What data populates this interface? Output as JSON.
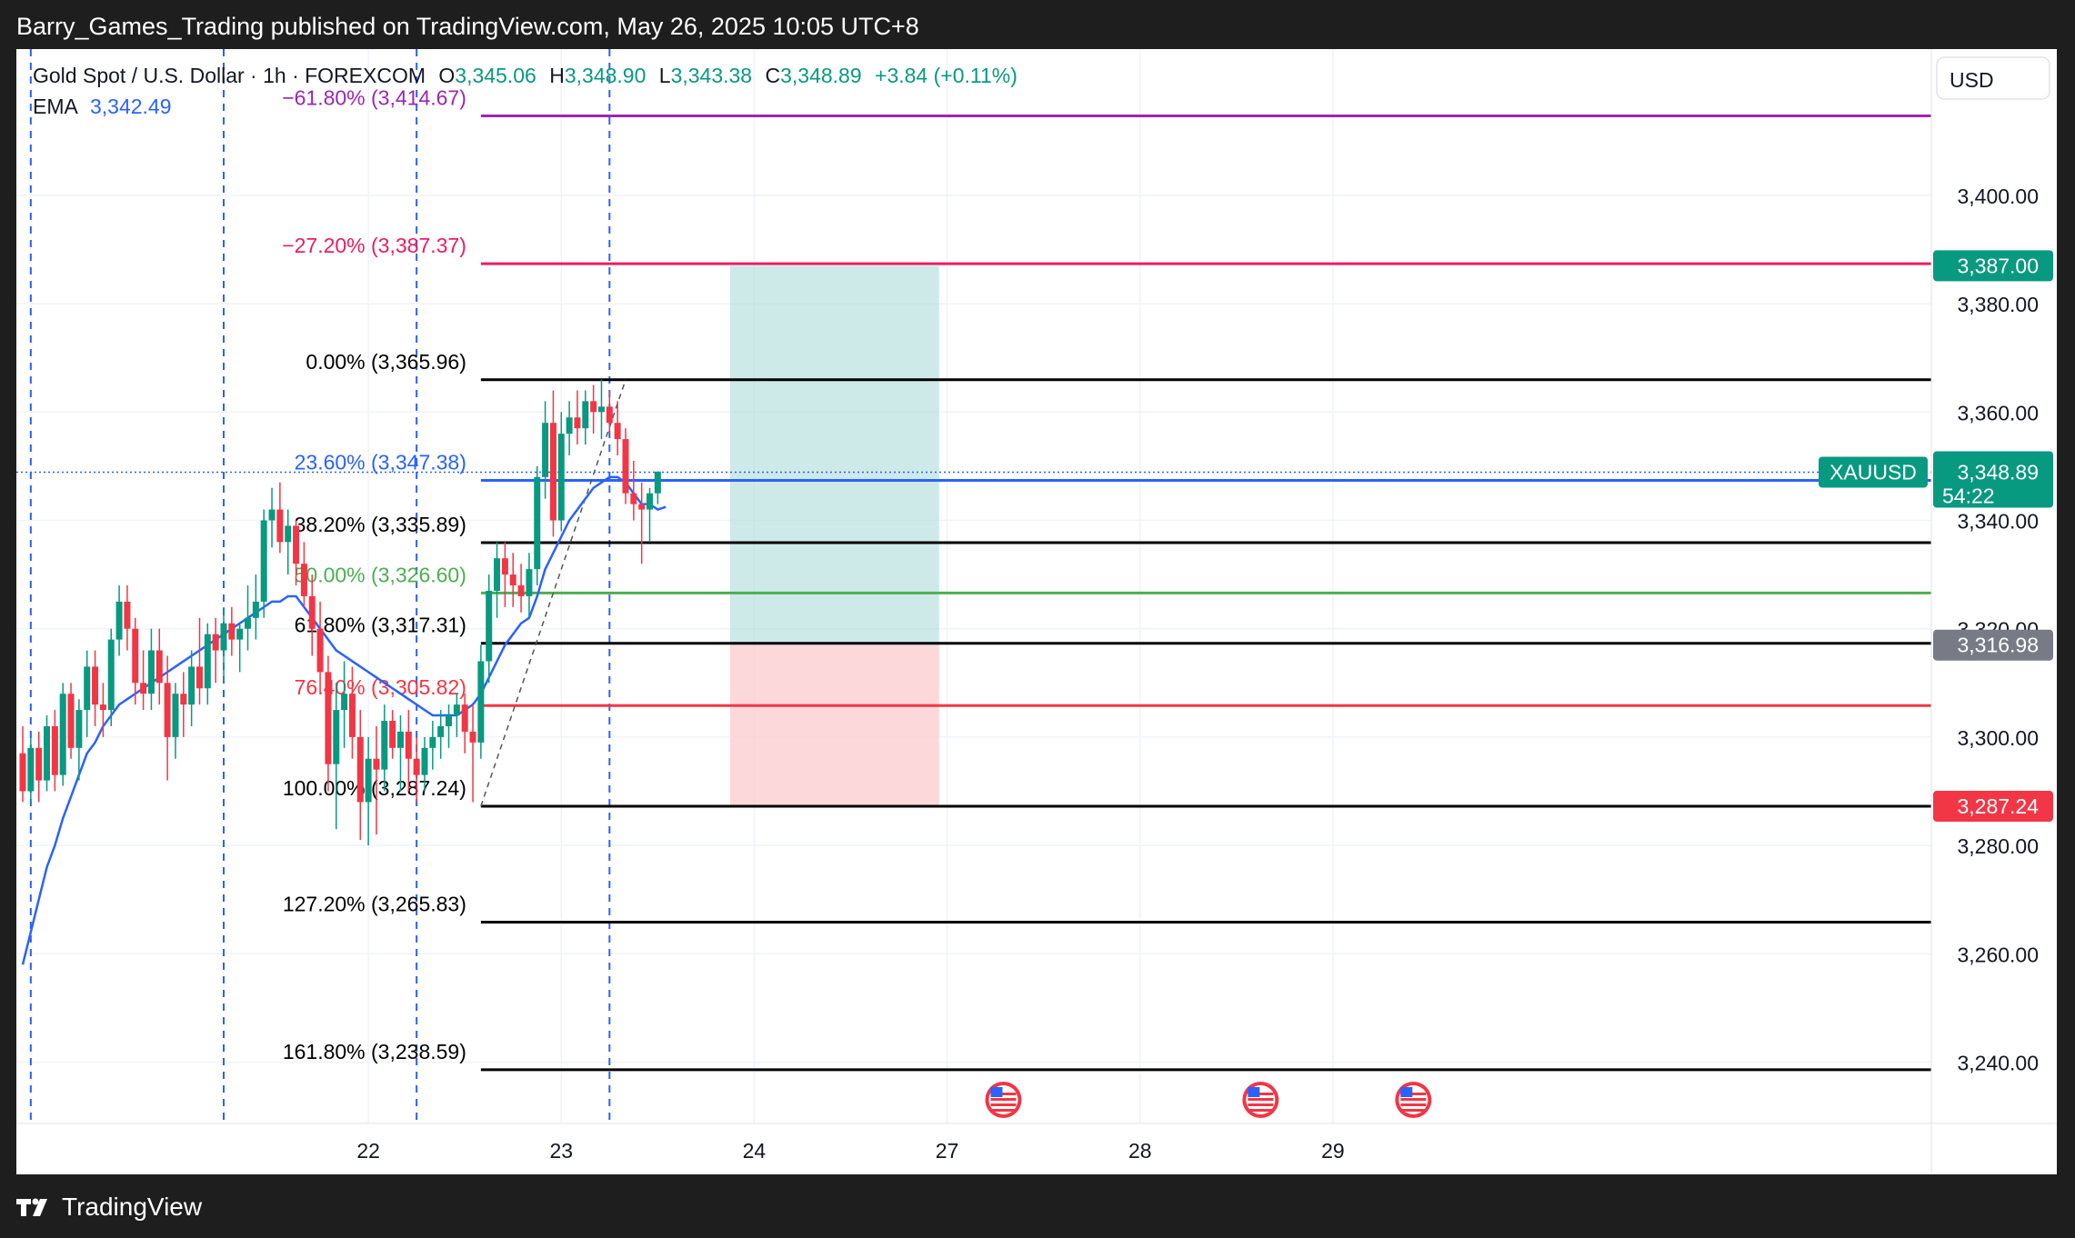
{
  "header": {
    "publisher_line": "Barry_Games_Trading published on TradingView.com, May 26, 2025 10:05 UTC+8"
  },
  "footer": {
    "brand": "TradingView"
  },
  "legend": {
    "symbol": "Gold Spot / U.S. Dollar · 1h · FOREXCOM",
    "o_label": "O",
    "o_value": "3,345.06",
    "h_label": "H",
    "h_value": "3,348.90",
    "l_label": "L",
    "l_value": "3,343.38",
    "c_label": "C",
    "c_value": "3,348.89",
    "change": "+3.84 (+0.11%)",
    "ema_label": "EMA",
    "ema_value": "3,342.49"
  },
  "colors": {
    "up": "#089981",
    "down": "#f23645",
    "ema": "#2962ff",
    "grid": "#f0f3fa",
    "fib_ext_purple": "#9c27b0",
    "fib_ext_pink": "#e91e63",
    "fib_line": "#000000",
    "fib_236": "#2962ff",
    "fib_50": "#4caf50",
    "fib_786": "#f23645",
    "target_zone": "#b2dfdb",
    "stop_zone": "#fccbcd",
    "separator": "#2962ff"
  },
  "chart_data": {
    "type": "candlestick",
    "title": "Gold Spot / U.S. Dollar · 1h · FOREXCOM",
    "currency_label": "USD",
    "ylim": [
      3230,
      3420
    ],
    "yticks": [
      "3,240.00",
      "3,260.00",
      "3,280.00",
      "3,300.00",
      "3,320.00",
      "3,340.00",
      "3,360.00",
      "3,380.00",
      "3,400.00"
    ],
    "ytick_values": [
      3240,
      3260,
      3280,
      3300,
      3320,
      3340,
      3360,
      3380,
      3400
    ],
    "xticks": [
      "22",
      "23",
      "24",
      "27",
      "28",
      "29"
    ],
    "xtick_bars": [
      43,
      67,
      91,
      115,
      139,
      163
    ],
    "session_separators": [
      1,
      25,
      49,
      73
    ],
    "candles_start_bar": 0,
    "candles": [
      [
        3297,
        3302,
        3288,
        3290
      ],
      [
        3290,
        3300,
        3288,
        3298
      ],
      [
        3298,
        3301,
        3288,
        3292
      ],
      [
        3292,
        3304,
        3290,
        3302
      ],
      [
        3302,
        3305,
        3290,
        3293
      ],
      [
        3293,
        3310,
        3291,
        3308
      ],
      [
        3308,
        3310,
        3296,
        3298
      ],
      [
        3298,
        3307,
        3292,
        3305
      ],
      [
        3305,
        3316,
        3300,
        3313
      ],
      [
        3313,
        3316,
        3302,
        3306
      ],
      [
        3306,
        3310,
        3300,
        3305
      ],
      [
        3305,
        3320,
        3302,
        3318
      ],
      [
        3318,
        3328,
        3315,
        3325
      ],
      [
        3325,
        3328,
        3316,
        3320
      ],
      [
        3320,
        3322,
        3306,
        3310
      ],
      [
        3310,
        3316,
        3305,
        3308
      ],
      [
        3308,
        3320,
        3305,
        3316
      ],
      [
        3316,
        3320,
        3306,
        3310
      ],
      [
        3310,
        3315,
        3292,
        3300
      ],
      [
        3300,
        3310,
        3296,
        3308
      ],
      [
        3308,
        3312,
        3300,
        3306
      ],
      [
        3306,
        3316,
        3302,
        3313
      ],
      [
        3313,
        3322,
        3306,
        3309
      ],
      [
        3309,
        3321,
        3306,
        3319
      ],
      [
        3319,
        3322,
        3310,
        3316
      ],
      [
        3316,
        3324,
        3310,
        3321
      ],
      [
        3321,
        3324,
        3315,
        3318
      ],
      [
        3318,
        3321,
        3312,
        3320
      ],
      [
        3320,
        3328,
        3316,
        3322
      ],
      [
        3322,
        3330,
        3318,
        3325
      ],
      [
        3325,
        3342,
        3322,
        3340
      ],
      [
        3340,
        3346,
        3335,
        3342
      ],
      [
        3342,
        3347,
        3334,
        3336
      ],
      [
        3336,
        3342,
        3330,
        3339
      ],
      [
        3339,
        3340,
        3328,
        3332
      ],
      [
        3332,
        3336,
        3324,
        3326
      ],
      [
        3326,
        3330,
        3315,
        3320
      ],
      [
        3320,
        3325,
        3308,
        3312
      ],
      [
        3312,
        3315,
        3290,
        3295
      ],
      [
        3295,
        3310,
        3283,
        3305
      ],
      [
        3305,
        3314,
        3298,
        3308
      ],
      [
        3308,
        3313,
        3296,
        3300
      ],
      [
        3300,
        3305,
        3281,
        3288
      ],
      [
        3288,
        3300,
        3280,
        3296
      ],
      [
        3296,
        3302,
        3282,
        3294
      ],
      [
        3294,
        3306,
        3290,
        3303
      ],
      [
        3303,
        3305,
        3296,
        3298
      ],
      [
        3298,
        3304,
        3290,
        3301
      ],
      [
        3301,
        3305,
        3290,
        3296
      ],
      [
        3296,
        3300,
        3288,
        3293
      ],
      [
        3293,
        3300,
        3290,
        3298
      ],
      [
        3298,
        3303,
        3294,
        3300
      ],
      [
        3300,
        3305,
        3296,
        3302
      ],
      [
        3302,
        3306,
        3298,
        3304
      ],
      [
        3304,
        3308,
        3300,
        3306
      ],
      [
        3306,
        3308,
        3297,
        3301
      ],
      [
        3301,
        3306,
        3288,
        3299
      ],
      [
        3299,
        3317,
        3296,
        3314
      ],
      [
        3314,
        3330,
        3310,
        3327
      ],
      [
        3327,
        3336,
        3322,
        3333
      ],
      [
        3333,
        3336,
        3324,
        3330
      ],
      [
        3330,
        3334,
        3324,
        3328
      ],
      [
        3328,
        3332,
        3323,
        3326
      ],
      [
        3326,
        3334,
        3322,
        3331
      ],
      [
        3331,
        3350,
        3328,
        3348
      ],
      [
        3348,
        3362,
        3344,
        3358
      ],
      [
        3358,
        3364,
        3337,
        3340
      ],
      [
        3340,
        3360,
        3338,
        3356
      ],
      [
        3356,
        3362,
        3352,
        3359
      ],
      [
        3359,
        3364,
        3354,
        3357
      ],
      [
        3357,
        3364,
        3354,
        3362
      ],
      [
        3362,
        3365,
        3356,
        3360
      ],
      [
        3360,
        3366,
        3355,
        3361
      ],
      [
        3361,
        3364,
        3356,
        3358
      ],
      [
        3358,
        3362,
        3352,
        3355
      ],
      [
        3355,
        3357,
        3343,
        3345
      ],
      [
        3345,
        3351,
        3340,
        3343
      ],
      [
        3343,
        3347,
        3332,
        3342
      ],
      [
        3342,
        3346,
        3336,
        3345
      ],
      [
        3345,
        3349,
        3343,
        3349
      ]
    ],
    "ema": [
      3258,
      3264,
      3270,
      3276,
      3280,
      3285,
      3289,
      3293,
      3297,
      3299,
      3302,
      3304,
      3306,
      3307,
      3308,
      3309,
      3310,
      3311,
      3312,
      3313,
      3314,
      3315,
      3316,
      3317,
      3318,
      3319,
      3320,
      3321,
      3322,
      3323,
      3324,
      3325,
      3325,
      3326,
      3326,
      3324,
      3322,
      3320,
      3318,
      3316,
      3315,
      3314,
      3313,
      3312,
      3311,
      3310,
      3309,
      3308,
      3307,
      3306,
      3305,
      3304,
      3304,
      3304,
      3304,
      3305,
      3306,
      3308,
      3311,
      3314,
      3317,
      3319,
      3321,
      3322,
      3326,
      3331,
      3334,
      3337,
      3340,
      3342,
      3344,
      3346,
      3347,
      3348,
      3348,
      3347,
      3345,
      3343,
      3343,
      3342,
      3342.49
    ],
    "fib_levels": [
      {
        "label": "−61.80% (3,414.67)",
        "value": 3414.67,
        "color": "#9c27b0"
      },
      {
        "label": "−27.20% (3,387.37)",
        "value": 3387.37,
        "color": "#e91e63"
      },
      {
        "label": "0.00% (3,365.96)",
        "value": 3365.96,
        "color": "#000000"
      },
      {
        "label": "23.60% (3,347.38)",
        "value": 3347.38,
        "color": "#2962ff"
      },
      {
        "label": "38.20% (3,335.89)",
        "value": 3335.89,
        "color": "#000000"
      },
      {
        "label": "50.00% (3,326.60)",
        "value": 3326.6,
        "color": "#4caf50"
      },
      {
        "label": "61.80% (3,317.31)",
        "value": 3317.31,
        "color": "#000000"
      },
      {
        "label": "76.40% (3,305.82)",
        "value": 3305.82,
        "color": "#f23645"
      },
      {
        "label": "100.00% (3,287.24)",
        "value": 3287.24,
        "color": "#000000"
      },
      {
        "label": "127.20% (3,265.83)",
        "value": 3265.83,
        "color": "#000000"
      },
      {
        "label": "161.80% (3,238.59)",
        "value": 3238.59,
        "color": "#000000"
      }
    ],
    "fib_start_bar": 57,
    "trend_line": {
      "from_bar": 57,
      "from_value": 3287.24,
      "to_bar": 75,
      "to_value": 3365.96
    },
    "position": {
      "entry": 3316.98,
      "target": 3387.0,
      "stop": 3287.24,
      "from_bar": 88,
      "to_bar": 114
    },
    "price_tags": [
      {
        "label": "3,387.00",
        "value": 3387.0,
        "color": "#089981"
      },
      {
        "label": "3,316.98",
        "value": 3316.98,
        "color": "#787b86"
      },
      {
        "label": "3,287.24",
        "value": 3287.24,
        "color": "#f23645"
      }
    ],
    "last_price": {
      "symbol_tag": "XAUUSD",
      "price": "3,348.89",
      "countdown": "54:22",
      "value": 3348.89
    },
    "event_markers_bars": [
      122,
      154,
      173
    ]
  }
}
